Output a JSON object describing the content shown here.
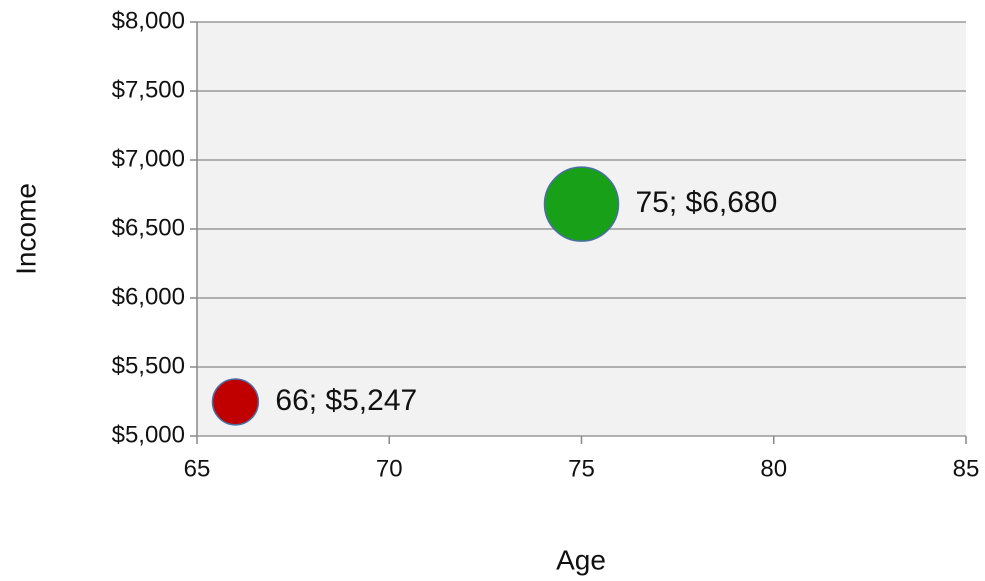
{
  "chart_data": {
    "type": "bubble",
    "x_label": "Age",
    "y_label": "Income",
    "x": [
      66,
      75
    ],
    "values": [
      5247,
      6680
    ],
    "sizes": [
      10,
      26
    ],
    "value_labels": [
      "66; $5,247",
      "75; $6,680"
    ],
    "colors": [
      "#c00000",
      "#18a018"
    ],
    "xlim": [
      65,
      85
    ],
    "xticks": [
      65,
      70,
      75,
      80,
      85
    ],
    "ylim": [
      5000,
      8000
    ],
    "yticks": [
      {
        "value": 5000,
        "label": "$5,000"
      },
      {
        "value": 5500,
        "label": "$5,500"
      },
      {
        "value": 6000,
        "label": "$6,000"
      },
      {
        "value": 6500,
        "label": "$6,500"
      },
      {
        "value": 7000,
        "label": "$7,000"
      },
      {
        "value": 7500,
        "label": "$7,500"
      },
      {
        "value": 8000,
        "label": "$8,000"
      }
    ],
    "grid": true
  }
}
